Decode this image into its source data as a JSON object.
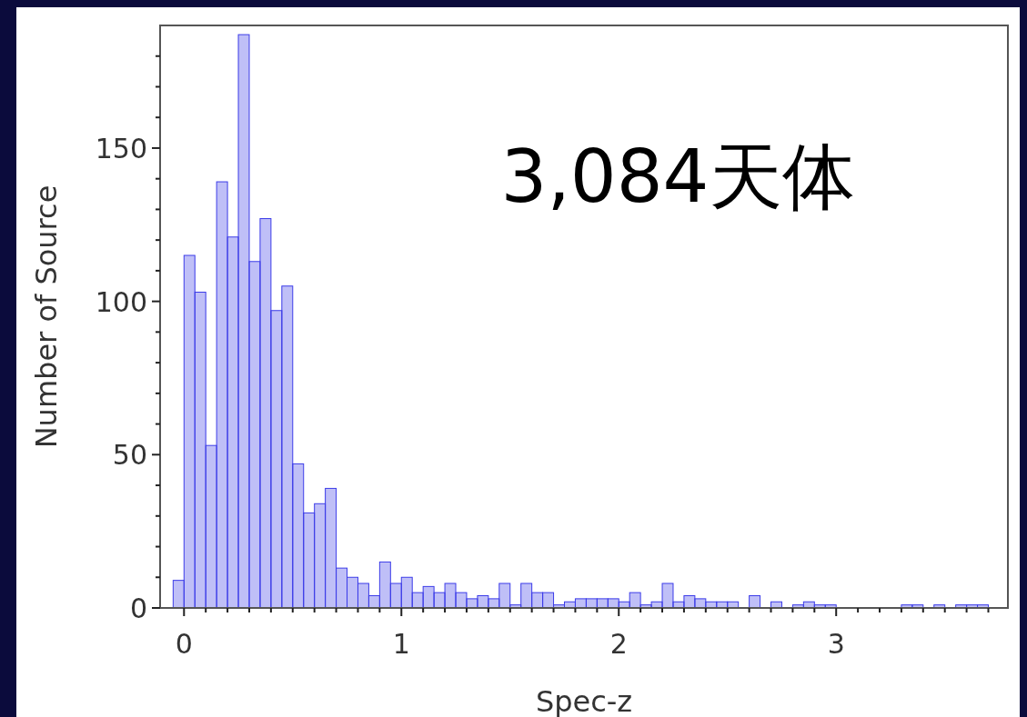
{
  "chart_data": {
    "type": "histogram",
    "xlabel": "Spec-z",
    "ylabel": "Number of Source",
    "annotations": [
      "3,084天体"
    ],
    "color": "#3c3ce8",
    "bins": [
      -0.05,
      0,
      0.05,
      0.1,
      0.15,
      0.2,
      0.25,
      0.3,
      0.35,
      0.4,
      0.45,
      0.5,
      0.55,
      0.6,
      0.65,
      0.7,
      0.75,
      0.8,
      0.85,
      0.9,
      0.95,
      1,
      1.05,
      1.1,
      1.15,
      1.2,
      1.25,
      1.3,
      1.35,
      1.4,
      1.45,
      1.5,
      1.55,
      1.6,
      1.65,
      1.7,
      1.75,
      1.8,
      1.85,
      1.9,
      1.95,
      2,
      2.05,
      2.1,
      2.15,
      2.2,
      2.25,
      2.3,
      2.35,
      2.4,
      2.45,
      2.5,
      2.55,
      2.6,
      2.65,
      2.7,
      2.75,
      2.8,
      2.85,
      2.9,
      2.95,
      3,
      3.05,
      3.1,
      3.15,
      3.2,
      3.25,
      3.3,
      3.35,
      3.4,
      3.45,
      3.5,
      3.55,
      3.6,
      3.65,
      3.7
    ],
    "values": [
      9,
      115,
      103,
      53,
      139,
      121,
      187,
      113,
      127,
      97,
      105,
      47,
      31,
      34,
      39,
      13,
      10,
      8,
      4,
      15,
      8,
      10,
      5,
      7,
      5,
      8,
      5,
      3,
      4,
      3,
      8,
      1,
      8,
      5,
      5,
      1,
      2,
      3,
      3,
      3,
      3,
      2,
      5,
      1,
      2,
      8,
      2,
      4,
      3,
      2,
      2,
      2,
      0,
      4,
      0,
      2,
      0,
      1,
      2,
      1,
      1,
      0,
      0,
      0,
      0,
      0,
      0,
      1,
      1,
      0,
      1,
      0,
      1,
      1,
      1
    ],
    "xlim": [
      -0.11,
      3.79
    ],
    "ylim": [
      0,
      190
    ],
    "xticks": [
      0,
      {
        "value": 0.1,
        "label": null
      },
      {
        "value": 0.2,
        "label": null
      },
      {
        "value": 0.3,
        "label": null
      },
      {
        "value": 0.4,
        "label": null
      },
      {
        "value": 0.5,
        "label": null
      },
      {
        "value": 0.6,
        "label": null
      },
      {
        "value": 0.7,
        "label": null
      },
      {
        "value": 0.8,
        "label": null
      },
      {
        "value": 0.9,
        "label": null
      },
      1,
      {
        "value": 1.1,
        "label": null
      },
      {
        "value": 1.2,
        "label": null
      },
      {
        "value": 1.3,
        "label": null
      },
      {
        "value": 1.4,
        "label": null
      },
      {
        "value": 1.5,
        "label": null
      },
      {
        "value": 1.6,
        "label": null
      },
      {
        "value": 1.7,
        "label": null
      },
      {
        "value": 1.8,
        "label": null
      },
      {
        "value": 1.9,
        "label": null
      },
      2,
      {
        "value": 2.1,
        "label": null
      },
      {
        "value": 2.2,
        "label": null
      },
      {
        "value": 2.3,
        "label": null
      },
      {
        "value": 2.4,
        "label": null
      },
      {
        "value": 2.5,
        "label": null
      },
      {
        "value": 2.6,
        "label": null
      },
      {
        "value": 2.7,
        "label": null
      },
      {
        "value": 2.8,
        "label": null
      },
      {
        "value": 2.9,
        "label": null
      },
      3,
      {
        "value": 3.1,
        "label": null
      },
      {
        "value": 3.2,
        "label": null
      },
      {
        "value": 3.3,
        "label": null
      },
      {
        "value": 3.4,
        "label": null
      },
      {
        "value": 3.5,
        "label": null
      },
      {
        "value": 3.6,
        "label": null
      },
      {
        "value": 3.7,
        "label": null
      }
    ],
    "yticks": [
      0,
      {
        "value": 10,
        "label": null
      },
      {
        "value": 20,
        "label": null
      },
      {
        "value": 30,
        "label": null
      },
      {
        "value": 40,
        "label": null
      },
      50,
      {
        "value": 60,
        "label": null
      },
      {
        "value": 70,
        "label": null
      },
      {
        "value": 80,
        "label": null
      },
      {
        "value": 90,
        "label": null
      },
      100,
      {
        "value": 110,
        "label": null
      },
      {
        "value": 120,
        "label": null
      },
      {
        "value": 130,
        "label": null
      },
      {
        "value": 140,
        "label": null
      },
      150,
      {
        "value": 160,
        "label": null
      },
      {
        "value": 170,
        "label": null
      },
      {
        "value": 180,
        "label": null
      }
    ]
  }
}
